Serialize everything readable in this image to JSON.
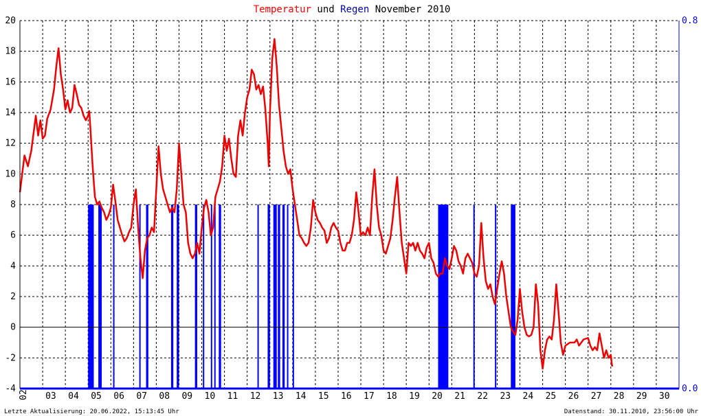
{
  "chart_data": {
    "type": "line",
    "title_parts": [
      {
        "text": "Temperatur",
        "color": "#ff0000"
      },
      {
        "text": " und ",
        "color": "#000000"
      },
      {
        "text": "Regen",
        "color": "#0000aa"
      },
      {
        "text": " November 2010",
        "color": "#000000"
      }
    ],
    "x_tick_labels": [
      "03",
      "04",
      "05",
      "06",
      "07",
      "08",
      "09",
      "10",
      "11",
      "12",
      "13",
      "14",
      "15",
      "16",
      "17",
      "18",
      "19",
      "20",
      "21",
      "22",
      "23",
      "24",
      "25",
      "26",
      "27",
      "28",
      "29",
      "30"
    ],
    "x_first_tick_label": "02",
    "ylim": [
      -4,
      20
    ],
    "y_ticks": [
      "-4",
      "-2",
      "0",
      "2",
      "4",
      "6",
      "8",
      "10",
      "12",
      "14",
      "16",
      "18",
      "20"
    ],
    "y_right_ticks": [
      "0.0",
      "0.8"
    ],
    "grid": true,
    "colors": {
      "temperature": "#ee0000",
      "rain": "#0000ff",
      "axis_right": "#0000ff"
    },
    "series": [
      {
        "name": "Temperatur",
        "points": [
          [
            2.0,
            8.8
          ],
          [
            2.1,
            10.0
          ],
          [
            2.2,
            11.2
          ],
          [
            2.35,
            10.5
          ],
          [
            2.5,
            11.5
          ],
          [
            2.7,
            13.8
          ],
          [
            2.8,
            12.5
          ],
          [
            2.9,
            13.5
          ],
          [
            3.0,
            12.3
          ],
          [
            3.1,
            12.5
          ],
          [
            3.2,
            13.6
          ],
          [
            3.35,
            14.2
          ],
          [
            3.5,
            15.5
          ],
          [
            3.6,
            17.0
          ],
          [
            3.7,
            18.2
          ],
          [
            3.8,
            16.5
          ],
          [
            3.9,
            15.5
          ],
          [
            4.0,
            14.2
          ],
          [
            4.1,
            14.8
          ],
          [
            4.2,
            14.0
          ],
          [
            4.3,
            14.3
          ],
          [
            4.4,
            15.8
          ],
          [
            4.5,
            15.2
          ],
          [
            4.6,
            14.5
          ],
          [
            4.7,
            14.3
          ],
          [
            4.8,
            13.8
          ],
          [
            4.9,
            13.5
          ],
          [
            5.0,
            13.8
          ],
          [
            5.05,
            14.1
          ],
          [
            5.1,
            13.0
          ],
          [
            5.2,
            10.5
          ],
          [
            5.3,
            8.5
          ],
          [
            5.4,
            8.0
          ],
          [
            5.5,
            8.2
          ],
          [
            5.6,
            7.8
          ],
          [
            5.7,
            7.5
          ],
          [
            5.8,
            7.0
          ],
          [
            5.9,
            7.3
          ],
          [
            6.0,
            7.8
          ],
          [
            6.1,
            9.3
          ],
          [
            6.2,
            8.2
          ],
          [
            6.3,
            7.0
          ],
          [
            6.4,
            6.5
          ],
          [
            6.5,
            6.0
          ],
          [
            6.6,
            5.6
          ],
          [
            6.7,
            5.8
          ],
          [
            6.8,
            6.2
          ],
          [
            6.9,
            6.5
          ],
          [
            7.0,
            8.0
          ],
          [
            7.1,
            9.0
          ],
          [
            7.2,
            6.5
          ],
          [
            7.3,
            4.5
          ],
          [
            7.4,
            3.2
          ],
          [
            7.5,
            5.0
          ],
          [
            7.6,
            5.8
          ],
          [
            7.7,
            6.0
          ],
          [
            7.8,
            6.5
          ],
          [
            7.9,
            6.2
          ],
          [
            8.0,
            9.0
          ],
          [
            8.1,
            11.8
          ],
          [
            8.2,
            10.0
          ],
          [
            8.3,
            9.0
          ],
          [
            8.4,
            8.5
          ],
          [
            8.5,
            8.0
          ],
          [
            8.6,
            7.5
          ],
          [
            8.7,
            7.8
          ],
          [
            8.8,
            7.5
          ],
          [
            8.9,
            9.0
          ],
          [
            9.0,
            12.0
          ],
          [
            9.1,
            10.0
          ],
          [
            9.2,
            8.0
          ],
          [
            9.3,
            7.5
          ],
          [
            9.4,
            5.5
          ],
          [
            9.5,
            4.8
          ],
          [
            9.6,
            4.5
          ],
          [
            9.7,
            4.8
          ],
          [
            9.8,
            5.5
          ],
          [
            9.9,
            4.8
          ],
          [
            10.0,
            6.5
          ],
          [
            10.1,
            7.8
          ],
          [
            10.2,
            8.3
          ],
          [
            10.3,
            7.5
          ],
          [
            10.4,
            6.0
          ],
          [
            10.5,
            6.5
          ],
          [
            10.6,
            8.5
          ],
          [
            10.7,
            9.0
          ],
          [
            10.8,
            9.5
          ],
          [
            10.9,
            10.5
          ],
          [
            11.0,
            12.5
          ],
          [
            11.1,
            11.5
          ],
          [
            11.2,
            12.3
          ],
          [
            11.3,
            11.0
          ],
          [
            11.4,
            10.0
          ],
          [
            11.5,
            9.8
          ],
          [
            11.6,
            12.5
          ],
          [
            11.7,
            13.5
          ],
          [
            11.8,
            12.5
          ],
          [
            11.9,
            14.0
          ],
          [
            12.0,
            15.0
          ],
          [
            12.1,
            15.5
          ],
          [
            12.2,
            16.8
          ],
          [
            12.3,
            16.5
          ],
          [
            12.4,
            15.5
          ],
          [
            12.5,
            15.8
          ],
          [
            12.6,
            15.2
          ],
          [
            12.7,
            15.7
          ],
          [
            12.8,
            14.2
          ],
          [
            12.9,
            12.0
          ],
          [
            12.95,
            10.5
          ],
          [
            13.0,
            14.0
          ],
          [
            13.1,
            17.5
          ],
          [
            13.2,
            18.8
          ],
          [
            13.3,
            17.0
          ],
          [
            13.4,
            14.5
          ],
          [
            13.5,
            13.0
          ],
          [
            13.6,
            11.5
          ],
          [
            13.7,
            10.5
          ],
          [
            13.8,
            10.0
          ],
          [
            13.9,
            10.3
          ],
          [
            14.0,
            9.0
          ],
          [
            14.1,
            8.0
          ],
          [
            14.2,
            7.0
          ],
          [
            14.3,
            6.0
          ],
          [
            14.4,
            5.8
          ],
          [
            14.5,
            5.5
          ],
          [
            14.6,
            5.3
          ],
          [
            14.7,
            5.5
          ],
          [
            14.8,
            6.5
          ],
          [
            14.9,
            8.3
          ],
          [
            15.0,
            7.5
          ],
          [
            15.1,
            7.0
          ],
          [
            15.2,
            6.8
          ],
          [
            15.3,
            6.5
          ],
          [
            15.4,
            6.3
          ],
          [
            15.5,
            5.5
          ],
          [
            15.6,
            5.8
          ],
          [
            15.7,
            6.5
          ],
          [
            15.8,
            6.8
          ],
          [
            15.9,
            6.5
          ],
          [
            16.0,
            6.3
          ],
          [
            16.1,
            5.5
          ],
          [
            16.2,
            5.0
          ],
          [
            16.3,
            5.0
          ],
          [
            16.4,
            5.5
          ],
          [
            16.5,
            5.5
          ],
          [
            16.6,
            6.0
          ],
          [
            16.7,
            7.0
          ],
          [
            16.8,
            8.8
          ],
          [
            16.9,
            7.5
          ],
          [
            17.0,
            6.0
          ],
          [
            17.1,
            6.2
          ],
          [
            17.2,
            6.0
          ],
          [
            17.3,
            6.5
          ],
          [
            17.4,
            6.0
          ],
          [
            17.5,
            8.5
          ],
          [
            17.6,
            10.3
          ],
          [
            17.7,
            8.0
          ],
          [
            17.8,
            6.5
          ],
          [
            17.9,
            6.0
          ],
          [
            18.0,
            5.0
          ],
          [
            18.1,
            4.8
          ],
          [
            18.2,
            5.3
          ],
          [
            18.3,
            5.8
          ],
          [
            18.4,
            7.0
          ],
          [
            18.5,
            8.5
          ],
          [
            18.6,
            9.8
          ],
          [
            18.7,
            7.5
          ],
          [
            18.8,
            5.5
          ],
          [
            18.9,
            4.5
          ],
          [
            19.0,
            3.5
          ],
          [
            19.1,
            5.5
          ],
          [
            19.2,
            5.3
          ],
          [
            19.3,
            5.5
          ],
          [
            19.4,
            5.0
          ],
          [
            19.5,
            5.5
          ],
          [
            19.6,
            5.0
          ],
          [
            19.7,
            4.8
          ],
          [
            19.8,
            4.5
          ],
          [
            19.9,
            5.2
          ],
          [
            20.0,
            5.5
          ],
          [
            20.1,
            4.5
          ],
          [
            20.2,
            4.2
          ],
          [
            20.3,
            3.5
          ],
          [
            20.4,
            3.3
          ],
          [
            20.5,
            3.5
          ],
          [
            20.6,
            3.5
          ],
          [
            20.7,
            4.5
          ],
          [
            20.8,
            4.0
          ],
          [
            20.9,
            3.8
          ],
          [
            21.0,
            4.5
          ],
          [
            21.1,
            5.3
          ],
          [
            21.2,
            5.0
          ],
          [
            21.3,
            4.3
          ],
          [
            21.4,
            4.0
          ],
          [
            21.5,
            3.5
          ],
          [
            21.6,
            4.5
          ],
          [
            21.7,
            4.8
          ],
          [
            21.8,
            4.5
          ],
          [
            21.9,
            4.2
          ],
          [
            22.0,
            3.5
          ],
          [
            22.1,
            3.3
          ],
          [
            22.2,
            4.0
          ],
          [
            22.3,
            6.8
          ],
          [
            22.4,
            4.5
          ],
          [
            22.5,
            3.0
          ],
          [
            22.6,
            2.5
          ],
          [
            22.7,
            2.8
          ],
          [
            22.8,
            2.0
          ],
          [
            22.9,
            1.5
          ],
          [
            23.0,
            2.5
          ],
          [
            23.1,
            3.5
          ],
          [
            23.2,
            4.3
          ],
          [
            23.3,
            3.5
          ],
          [
            23.4,
            2.0
          ],
          [
            23.5,
            1.0
          ],
          [
            23.6,
            0.0
          ],
          [
            23.7,
            -0.3
          ],
          [
            23.8,
            -0.5
          ],
          [
            23.9,
            0.5
          ],
          [
            24.0,
            2.5
          ],
          [
            24.1,
            1.0
          ],
          [
            24.2,
            0.0
          ],
          [
            24.3,
            -0.5
          ],
          [
            24.4,
            -0.6
          ],
          [
            24.5,
            -0.5
          ],
          [
            24.6,
            0.0
          ],
          [
            24.7,
            2.8
          ],
          [
            24.8,
            1.5
          ],
          [
            24.9,
            -1.5
          ],
          [
            25.0,
            -2.7
          ],
          [
            25.1,
            -1.5
          ],
          [
            25.2,
            -0.8
          ],
          [
            25.3,
            -0.6
          ],
          [
            25.4,
            -0.8
          ],
          [
            25.5,
            0.5
          ],
          [
            25.6,
            2.8
          ],
          [
            25.7,
            1.0
          ],
          [
            25.8,
            -1.0
          ],
          [
            25.9,
            -1.8
          ],
          [
            26.0,
            -1.2
          ],
          [
            26.2,
            -1.0
          ],
          [
            26.4,
            -1.0
          ],
          [
            26.5,
            -0.8
          ],
          [
            26.6,
            -1.2
          ],
          [
            26.8,
            -0.8
          ],
          [
            27.0,
            -0.7
          ],
          [
            27.1,
            -1.2
          ],
          [
            27.2,
            -1.5
          ],
          [
            27.3,
            -1.3
          ],
          [
            27.4,
            -1.5
          ],
          [
            27.5,
            -0.4
          ],
          [
            27.6,
            -1.2
          ],
          [
            27.7,
            -2.0
          ],
          [
            27.8,
            -1.5
          ],
          [
            27.9,
            -2.0
          ],
          [
            28.0,
            -1.8
          ],
          [
            28.05,
            -2.5
          ],
          [
            28.1,
            -2.5
          ]
        ]
      },
      {
        "name": "Regen",
        "bars": [
          [
            5.0,
            5.25,
            0.4
          ],
          [
            5.45,
            5.6,
            0.4
          ],
          [
            6.1,
            6.15,
            0.4
          ],
          [
            7.25,
            7.3,
            0.4
          ],
          [
            7.55,
            7.65,
            0.4
          ],
          [
            8.65,
            8.75,
            0.4
          ],
          [
            8.9,
            9.0,
            0.4
          ],
          [
            9.7,
            9.8,
            0.4
          ],
          [
            10.05,
            10.1,
            0.4
          ],
          [
            10.4,
            10.45,
            0.4
          ],
          [
            10.55,
            10.6,
            0.4
          ],
          [
            10.75,
            10.85,
            0.4
          ],
          [
            12.45,
            12.5,
            0.4
          ],
          [
            12.9,
            13.0,
            0.4
          ],
          [
            13.15,
            13.3,
            0.4
          ],
          [
            13.35,
            13.45,
            0.4
          ],
          [
            13.55,
            13.65,
            0.4
          ],
          [
            13.75,
            13.8,
            0.4
          ],
          [
            14.0,
            14.05,
            0.4
          ],
          [
            20.4,
            20.85,
            0.4
          ],
          [
            21.95,
            22.0,
            0.4
          ],
          [
            22.9,
            22.95,
            0.4
          ],
          [
            23.6,
            23.8,
            0.4
          ]
        ]
      }
    ],
    "footer_left": "Letzte Aktualisierung: 20.06.2022, 15:13:45 Uhr",
    "footer_right": "Datenstand: 30.11.2010, 23:56:00 Uhr"
  }
}
